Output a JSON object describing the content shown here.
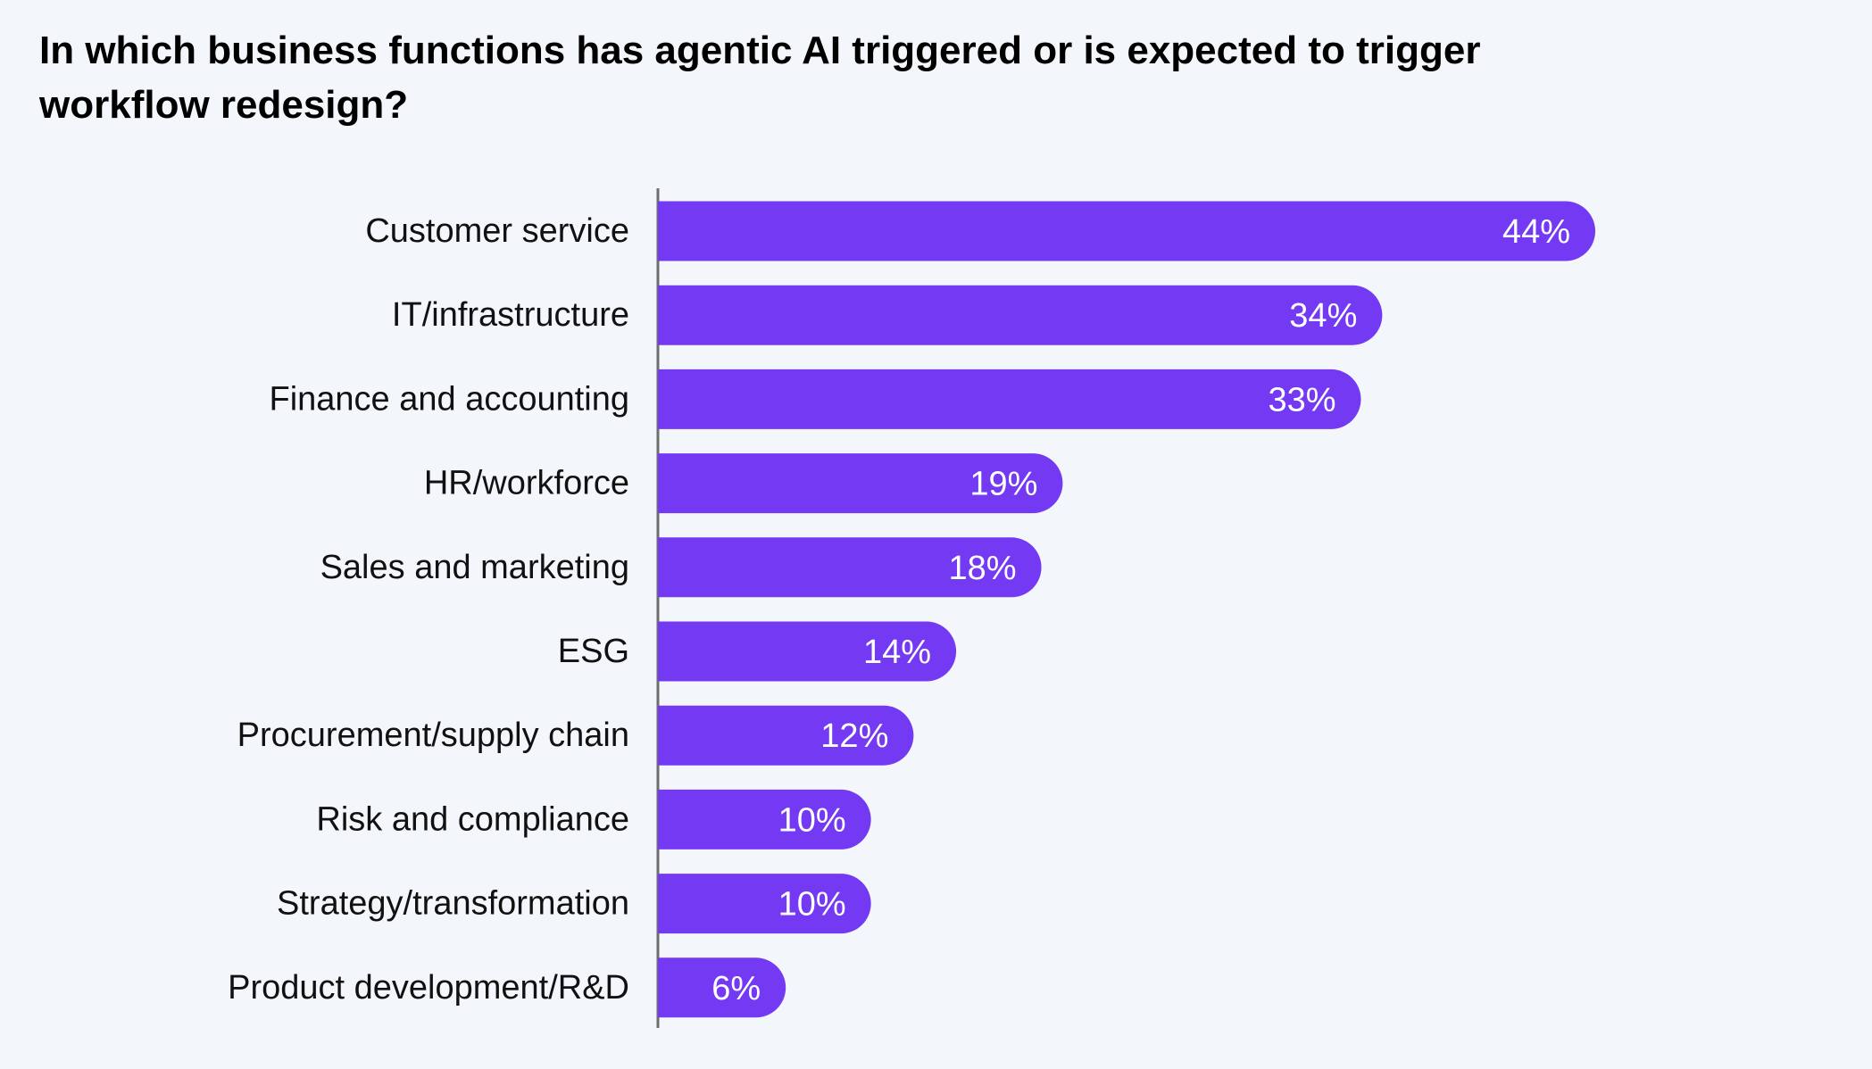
{
  "colors": {
    "background": "#F3F6FA",
    "bar": "#7439F2",
    "axis": "#6E6E6E",
    "text": "#111111",
    "bar_label": "#FFFFFF"
  },
  "chart_data": {
    "type": "bar",
    "orientation": "horizontal",
    "title": "In which business functions has agentic AI triggered or is expected to trigger workflow redesign?",
    "xlabel": "",
    "ylabel": "",
    "unit": "%",
    "categories": [
      "Customer service",
      "IT/infrastructure",
      "Finance and accounting",
      "HR/workforce",
      "Sales and marketing",
      "ESG",
      "Procurement/supply chain",
      "Risk and compliance",
      "Strategy/transformation",
      "Product development/R&D"
    ],
    "values": [
      44,
      34,
      33,
      19,
      18,
      14,
      12,
      10,
      10,
      6
    ],
    "labels": [
      "44%",
      "34%",
      "33%",
      "19%",
      "18%",
      "14%",
      "12%",
      "10%",
      "10%",
      "6%"
    ],
    "xlim": [
      0,
      44
    ],
    "grid": false,
    "legend": "none"
  }
}
